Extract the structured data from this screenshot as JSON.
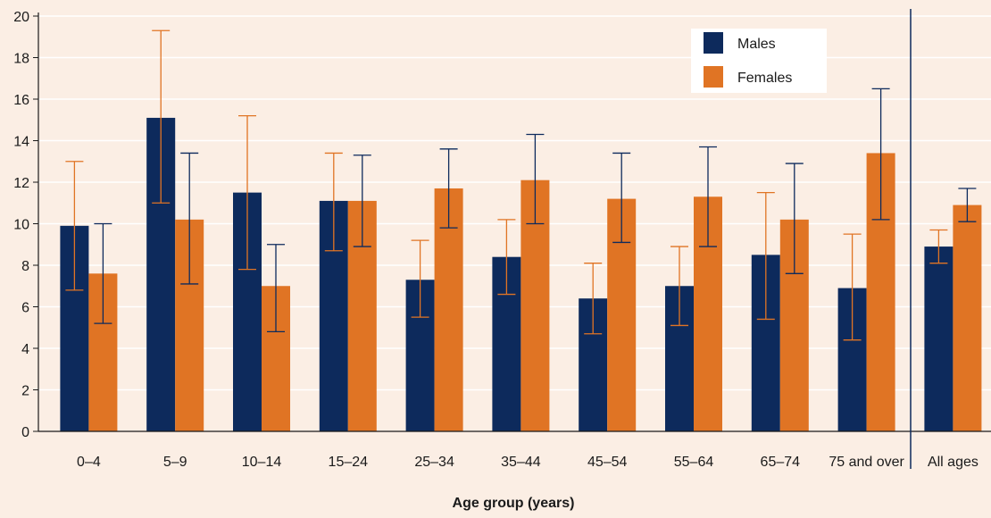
{
  "chart_data": {
    "type": "bar",
    "xlabel": "Age group (years)",
    "ylabel": "",
    "ylim": [
      0,
      20
    ],
    "yticks": [
      0,
      2,
      4,
      6,
      8,
      10,
      12,
      14,
      16,
      18,
      20
    ],
    "grid": true,
    "legend_position": "top-right",
    "categories": [
      "0–4",
      "5–9",
      "10–14",
      "15–24",
      "25–34",
      "35–44",
      "45–54",
      "55–64",
      "65–74",
      "75 and over",
      "All ages"
    ],
    "separator_before_category": "All ages",
    "series": [
      {
        "name": "Males",
        "color": "#0d2a5c",
        "errorbar_color": "#e07424",
        "values": [
          9.9,
          15.1,
          11.5,
          11.1,
          7.3,
          8.4,
          6.4,
          7.0,
          8.5,
          6.9,
          8.9
        ],
        "lower": [
          6.8,
          11.0,
          7.8,
          8.7,
          5.5,
          6.6,
          4.7,
          5.1,
          5.4,
          4.4,
          8.1
        ],
        "upper": [
          13.0,
          19.3,
          15.2,
          13.4,
          9.2,
          10.2,
          8.1,
          8.9,
          11.5,
          9.5,
          9.7
        ]
      },
      {
        "name": "Females",
        "color": "#e07424",
        "errorbar_color": "#0d2a5c",
        "values": [
          7.6,
          10.2,
          7.0,
          11.1,
          11.7,
          12.1,
          11.2,
          11.3,
          10.2,
          13.4,
          10.9
        ],
        "lower": [
          5.2,
          7.1,
          4.8,
          8.9,
          9.8,
          10.0,
          9.1,
          8.9,
          7.6,
          10.2,
          10.1
        ],
        "upper": [
          10.0,
          13.4,
          9.0,
          13.3,
          13.6,
          14.3,
          13.4,
          13.7,
          12.9,
          16.5,
          11.7
        ]
      }
    ]
  }
}
